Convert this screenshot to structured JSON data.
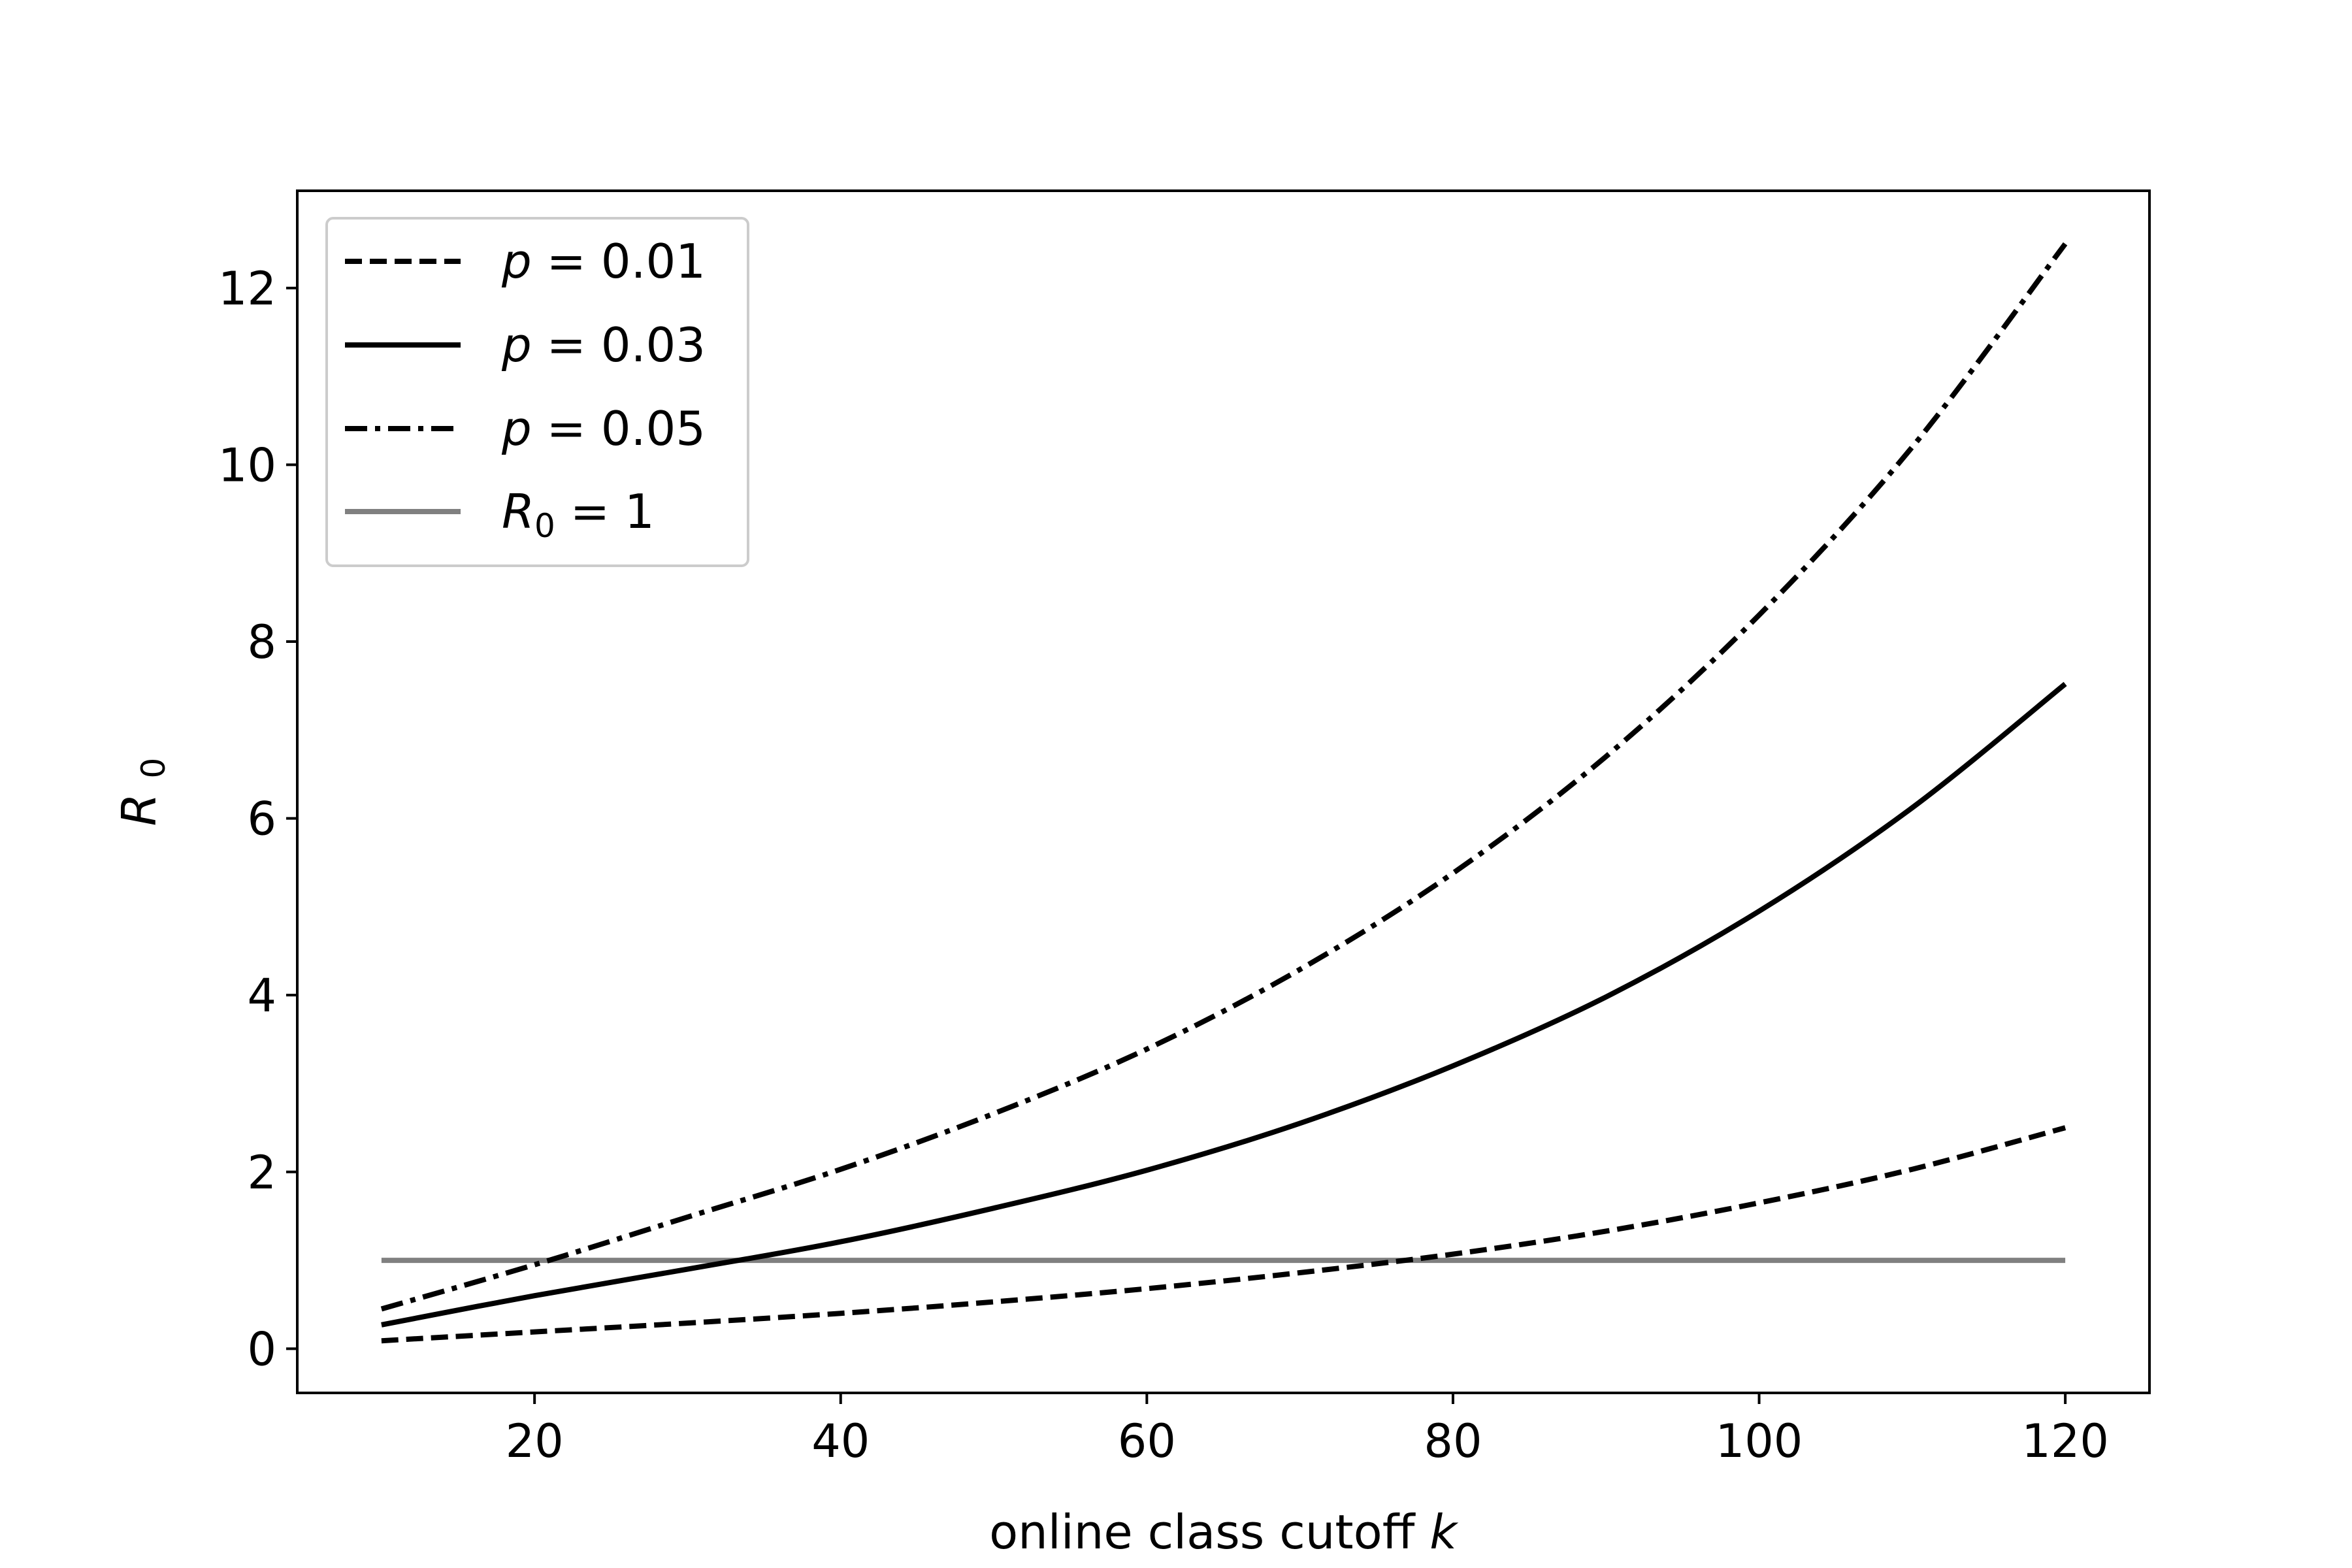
{
  "chart_data": {
    "type": "line",
    "title": "",
    "xlabel": "online class cutoff",
    "xlabel_var": "k",
    "ylabel_var": "R",
    "ylabel_sub": "0",
    "xlim": [
      4.5,
      125.5
    ],
    "ylim": [
      -0.5,
      13.1
    ],
    "xticks": [
      20,
      40,
      60,
      80,
      100,
      120
    ],
    "yticks": [
      0,
      2,
      4,
      6,
      8,
      10,
      12
    ],
    "x": [
      10,
      20,
      30,
      40,
      50,
      60,
      70,
      80,
      90,
      100,
      110,
      120
    ],
    "series": [
      {
        "name": "p = 0.01",
        "var": "p",
        "eq": " = ",
        "num": "0.01",
        "style": "dashed",
        "color": "#000000",
        "values": [
          0.09,
          0.19,
          0.29,
          0.4,
          0.53,
          0.68,
          0.86,
          1.07,
          1.33,
          1.65,
          2.03,
          2.5
        ]
      },
      {
        "name": "p = 0.03",
        "var": "p",
        "eq": " = ",
        "num": "0.03",
        "style": "solid",
        "color": "#000000",
        "values": [
          0.27,
          0.6,
          0.9,
          1.21,
          1.59,
          2.02,
          2.55,
          3.2,
          3.98,
          4.95,
          6.12,
          7.52
        ]
      },
      {
        "name": "p = 0.05",
        "var": "p",
        "eq": " = ",
        "num": "0.05",
        "style": "dashdot",
        "color": "#000000",
        "values": [
          0.45,
          0.95,
          1.49,
          2.03,
          2.66,
          3.39,
          4.29,
          5.38,
          6.7,
          8.3,
          10.2,
          12.5
        ]
      },
      {
        "name": "R0 = 1",
        "var": "R",
        "sub": "0",
        "eq": " = ",
        "num": "1",
        "style": "solid",
        "color": "#808080",
        "values": [
          1,
          1,
          1,
          1,
          1,
          1,
          1,
          1,
          1,
          1,
          1,
          1
        ]
      }
    ],
    "legend_position": "upper left",
    "grid": false
  }
}
